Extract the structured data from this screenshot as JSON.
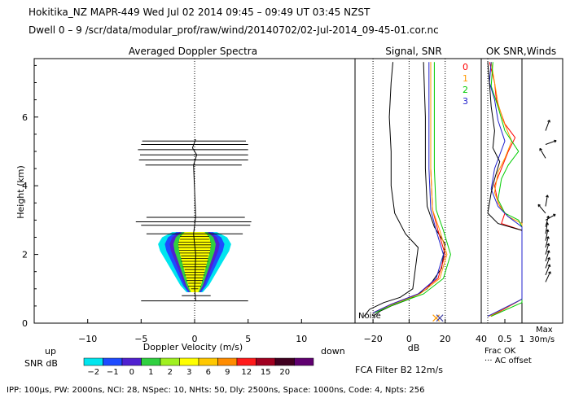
{
  "header": {
    "line1": "Hokitika_NZ   MAPR-449  Wed Jul 02 2014 09:45 – 09:49 UT 03:45 NZST",
    "line2": "Dwell  0 – 9   /scr/data/modular_prof/raw/wind/20140702/02-Jul-2014_09-45-01.cor.nc"
  },
  "footer": {
    "params": "IPP: 100μs,  PW: 2000ns,  NCI: 28,  NSpec: 10,  NHts: 50,  Dly: 2500ns,  Space: 1000ns,  Code: 4,  Npts: 256",
    "filter": "FCA Filter B2 12m/s"
  },
  "colors": {
    "snr_scale": [
      "#00e5ee",
      "#1e4bff",
      "#5020d0",
      "#30d040",
      "#a0f020",
      "#ffff00",
      "#ffc800",
      "#ff8c00",
      "#ff1a1a",
      "#a00020",
      "#400020",
      "#600070"
    ],
    "profile_lines": [
      "#ff0000",
      "#ff9900",
      "#00cc00",
      "#2020cc"
    ],
    "axis": "#000000"
  },
  "chart_data": [
    {
      "type": "heatmap",
      "title": "Averaged Doppler Spectra",
      "xlabel": "Doppler Velocity (m/s)",
      "ylabel": "Height (km)",
      "x_left_label": "up",
      "x_right_label": "down",
      "xlim": [
        -15,
        15
      ],
      "ylim": [
        0,
        7.7
      ],
      "xticks": [
        "−10",
        "−5",
        "0",
        "5",
        "10"
      ],
      "xtick_values": [
        -10,
        -5,
        0,
        5,
        10
      ],
      "yticks": [
        "0",
        "2",
        "4",
        "6"
      ],
      "ytick_values": [
        0,
        2,
        4,
        6
      ],
      "snr_label": "SNR dB",
      "snr_levels": [
        "−2",
        "−1",
        "0",
        "1",
        "2",
        "3",
        "6",
        "9",
        "12",
        "15",
        "20",
        ""
      ],
      "echo_body": [
        {
          "h": 0.9,
          "w": 0.4
        },
        {
          "h": 1.1,
          "w": 0.7
        },
        {
          "h": 1.3,
          "w": 0.9
        },
        {
          "h": 1.5,
          "w": 1.1
        },
        {
          "h": 1.7,
          "w": 1.3
        },
        {
          "h": 1.9,
          "w": 1.5
        },
        {
          "h": 2.1,
          "w": 1.7
        },
        {
          "h": 2.3,
          "w": 1.8
        },
        {
          "h": 2.5,
          "w": 1.6
        },
        {
          "h": 2.65,
          "w": 1.1
        }
      ],
      "width_bars": [
        {
          "h": 0.65,
          "left": -5,
          "right": 5
        },
        {
          "h": 0.8,
          "left": -1.2,
          "right": 1.5
        },
        {
          "h": 2.6,
          "left": -4.5,
          "right": 4.5
        },
        {
          "h": 2.85,
          "left": -5,
          "right": 5.2
        },
        {
          "h": 2.95,
          "left": -5.5,
          "right": 5.3
        },
        {
          "h": 3.08,
          "left": -4.5,
          "right": 4.7
        },
        {
          "h": 4.6,
          "left": -4.6,
          "right": 4.4
        },
        {
          "h": 4.75,
          "left": -5.2,
          "right": 5.0
        },
        {
          "h": 4.9,
          "left": -5.1,
          "right": 5.0
        },
        {
          "h": 5.05,
          "left": -5.3,
          "right": 5.0
        },
        {
          "h": 5.2,
          "left": -5.0,
          "right": 5.0
        },
        {
          "h": 5.3,
          "left": -4.9,
          "right": 4.8
        }
      ]
    },
    {
      "type": "line",
      "title": "Signal, SNR",
      "xlabel": "dB",
      "xlim": [
        -30,
        40
      ],
      "ylim": [
        0,
        7.7
      ],
      "xticks": [
        "−20",
        "0",
        "20",
        "40"
      ],
      "xtick_values": [
        -20,
        0,
        20,
        40
      ],
      "noise_label": "Noise",
      "noise_x": [
        -20,
        0,
        20
      ],
      "series": [
        {
          "color": "#000000",
          "points": [
            [
              -25,
              0.2
            ],
            [
              -22,
              0.4
            ],
            [
              -14,
              0.6
            ],
            [
              -5,
              0.75
            ],
            [
              2,
              1.0
            ],
            [
              5,
              2.2
            ],
            [
              -2,
              2.6
            ],
            [
              -8,
              3.2
            ],
            [
              -10,
              4.0
            ],
            [
              -10,
              5.0
            ],
            [
              -11,
              6.0
            ],
            [
              -10,
              7.0
            ],
            [
              -9,
              7.6
            ]
          ]
        },
        {
          "color": "#000000",
          "points": [
            [
              -20,
              0.2
            ],
            [
              -16,
              0.35
            ],
            [
              -10,
              0.5
            ],
            [
              0,
              0.7
            ],
            [
              10,
              1.0
            ],
            [
              18,
              1.6
            ],
            [
              20,
              2.3
            ],
            [
              14,
              2.8
            ],
            [
              10,
              3.4
            ],
            [
              9,
              4.5
            ],
            [
              9,
              6.0
            ],
            [
              8,
              7.6
            ]
          ]
        },
        {
          "color": "#ff0000",
          "points": [
            [
              -20,
              0.3
            ],
            [
              -10,
              0.55
            ],
            [
              5,
              0.85
            ],
            [
              16,
              1.3
            ],
            [
              20,
              2.0
            ],
            [
              16,
              2.7
            ],
            [
              13,
              3.3
            ],
            [
              12,
              4.5
            ],
            [
              12,
              6.0
            ],
            [
              12,
              7.6
            ]
          ]
        },
        {
          "color": "#ff9900",
          "points": [
            [
              -20,
              0.3
            ],
            [
              -9,
              0.55
            ],
            [
              6,
              0.85
            ],
            [
              17,
              1.3
            ],
            [
              21,
              2.0
            ],
            [
              17,
              2.7
            ],
            [
              13,
              3.3
            ],
            [
              12,
              4.5
            ],
            [
              12,
              6.0
            ],
            [
              12,
              7.6
            ]
          ]
        },
        {
          "color": "#00cc00",
          "points": [
            [
              -19,
              0.3
            ],
            [
              -8,
              0.55
            ],
            [
              8,
              0.85
            ],
            [
              19,
              1.3
            ],
            [
              23,
              2.0
            ],
            [
              19,
              2.7
            ],
            [
              15,
              3.3
            ],
            [
              14,
              4.5
            ],
            [
              14,
              6.0
            ],
            [
              14,
              7.6
            ]
          ]
        },
        {
          "color": "#2020cc",
          "points": [
            [
              -20,
              0.3
            ],
            [
              -10,
              0.55
            ],
            [
              5,
              0.85
            ],
            [
              15,
              1.3
            ],
            [
              19,
              2.0
            ],
            [
              15,
              2.7
            ],
            [
              12,
              3.3
            ],
            [
              11,
              4.5
            ],
            [
              11,
              6.0
            ],
            [
              11,
              7.6
            ]
          ]
        }
      ],
      "markers": [
        {
          "x": 15,
          "h": 0.15,
          "color": "#ff9900"
        },
        {
          "x": 17,
          "h": 0.15,
          "color": "#4040a0"
        }
      ]
    },
    {
      "type": "line",
      "title": "OK SNR,Winds",
      "legend": [
        "0",
        "1",
        "2",
        "3"
      ],
      "xlim": [
        0,
        1
      ],
      "ylim": [
        0,
        7.7
      ],
      "xticks": [
        "0.5",
        "1"
      ],
      "xtick_values": [
        0.5,
        1
      ],
      "xlabel": "Frac OK",
      "note": "··· AC offset",
      "max_label": "Max",
      "max_value": "30m/s",
      "series": [
        {
          "color": "#ff0000",
          "points": [
            [
              0.05,
              7.6
            ],
            [
              0.2,
              7.0
            ],
            [
              0.25,
              6.5
            ],
            [
              0.5,
              5.8
            ],
            [
              0.8,
              5.4
            ],
            [
              0.6,
              5.0
            ],
            [
              0.4,
              4.5
            ],
            [
              0.2,
              4.0
            ],
            [
              0.3,
              3.5
            ],
            [
              0.5,
              3.2
            ],
            [
              0.4,
              2.9
            ],
            [
              1.0,
              2.7
            ],
            [
              1.0,
              0.7
            ],
            [
              0.1,
              0.2
            ]
          ]
        },
        {
          "color": "#ff9900",
          "points": [
            [
              0.1,
              7.6
            ],
            [
              0.2,
              7.0
            ],
            [
              0.3,
              6.4
            ],
            [
              0.45,
              5.9
            ],
            [
              0.7,
              5.3
            ],
            [
              0.5,
              4.8
            ],
            [
              0.3,
              4.4
            ],
            [
              0.2,
              3.8
            ],
            [
              0.35,
              3.4
            ],
            [
              0.6,
              3.1
            ],
            [
              1.0,
              2.9
            ],
            [
              1.0,
              0.7
            ],
            [
              0.05,
              0.2
            ]
          ]
        },
        {
          "color": "#00cc00",
          "points": [
            [
              0.15,
              7.6
            ],
            [
              0.1,
              6.9
            ],
            [
              0.3,
              6.3
            ],
            [
              0.5,
              5.6
            ],
            [
              0.9,
              5.0
            ],
            [
              0.6,
              4.6
            ],
            [
              0.4,
              4.2
            ],
            [
              0.3,
              3.6
            ],
            [
              0.5,
              3.2
            ],
            [
              0.9,
              3.0
            ],
            [
              1.0,
              2.8
            ],
            [
              1.0,
              0.6
            ],
            [
              0.1,
              0.2
            ]
          ]
        },
        {
          "color": "#2020cc",
          "points": [
            [
              0.1,
              7.6
            ],
            [
              0.05,
              7.0
            ],
            [
              0.2,
              6.5
            ],
            [
              0.3,
              5.9
            ],
            [
              0.5,
              5.3
            ],
            [
              0.35,
              4.9
            ],
            [
              0.2,
              4.5
            ],
            [
              0.1,
              3.9
            ],
            [
              0.3,
              3.4
            ],
            [
              0.6,
              3.1
            ],
            [
              1.0,
              2.8
            ],
            [
              1.0,
              0.7
            ],
            [
              0.0,
              0.2
            ]
          ]
        },
        {
          "color": "#000000",
          "points": [
            [
              0.0,
              7.6
            ],
            [
              0.05,
              7.0
            ],
            [
              0.1,
              6.3
            ],
            [
              0.2,
              5.6
            ],
            [
              0.15,
              5.1
            ],
            [
              0.35,
              4.7
            ],
            [
              0.2,
              4.2
            ],
            [
              0.1,
              3.8
            ],
            [
              0.0,
              3.2
            ],
            [
              0.3,
              2.9
            ],
            [
              1.0,
              2.7
            ]
          ]
        }
      ],
      "winds": [
        {
          "h": 5.6,
          "angle": 20
        },
        {
          "h": 5.2,
          "angle": 70
        },
        {
          "h": 4.8,
          "angle": -30
        },
        {
          "h": 3.4,
          "angle": 10
        },
        {
          "h": 3.2,
          "angle": -40
        },
        {
          "h": 3.0,
          "angle": 60
        },
        {
          "h": 2.8,
          "angle": 15
        },
        {
          "h": 2.6,
          "angle": 10
        },
        {
          "h": 2.4,
          "angle": 12
        },
        {
          "h": 2.2,
          "angle": 14
        },
        {
          "h": 2.0,
          "angle": 16
        },
        {
          "h": 1.8,
          "angle": 18
        },
        {
          "h": 1.6,
          "angle": 20
        },
        {
          "h": 1.4,
          "angle": 22
        },
        {
          "h": 1.2,
          "angle": 25
        }
      ]
    }
  ]
}
